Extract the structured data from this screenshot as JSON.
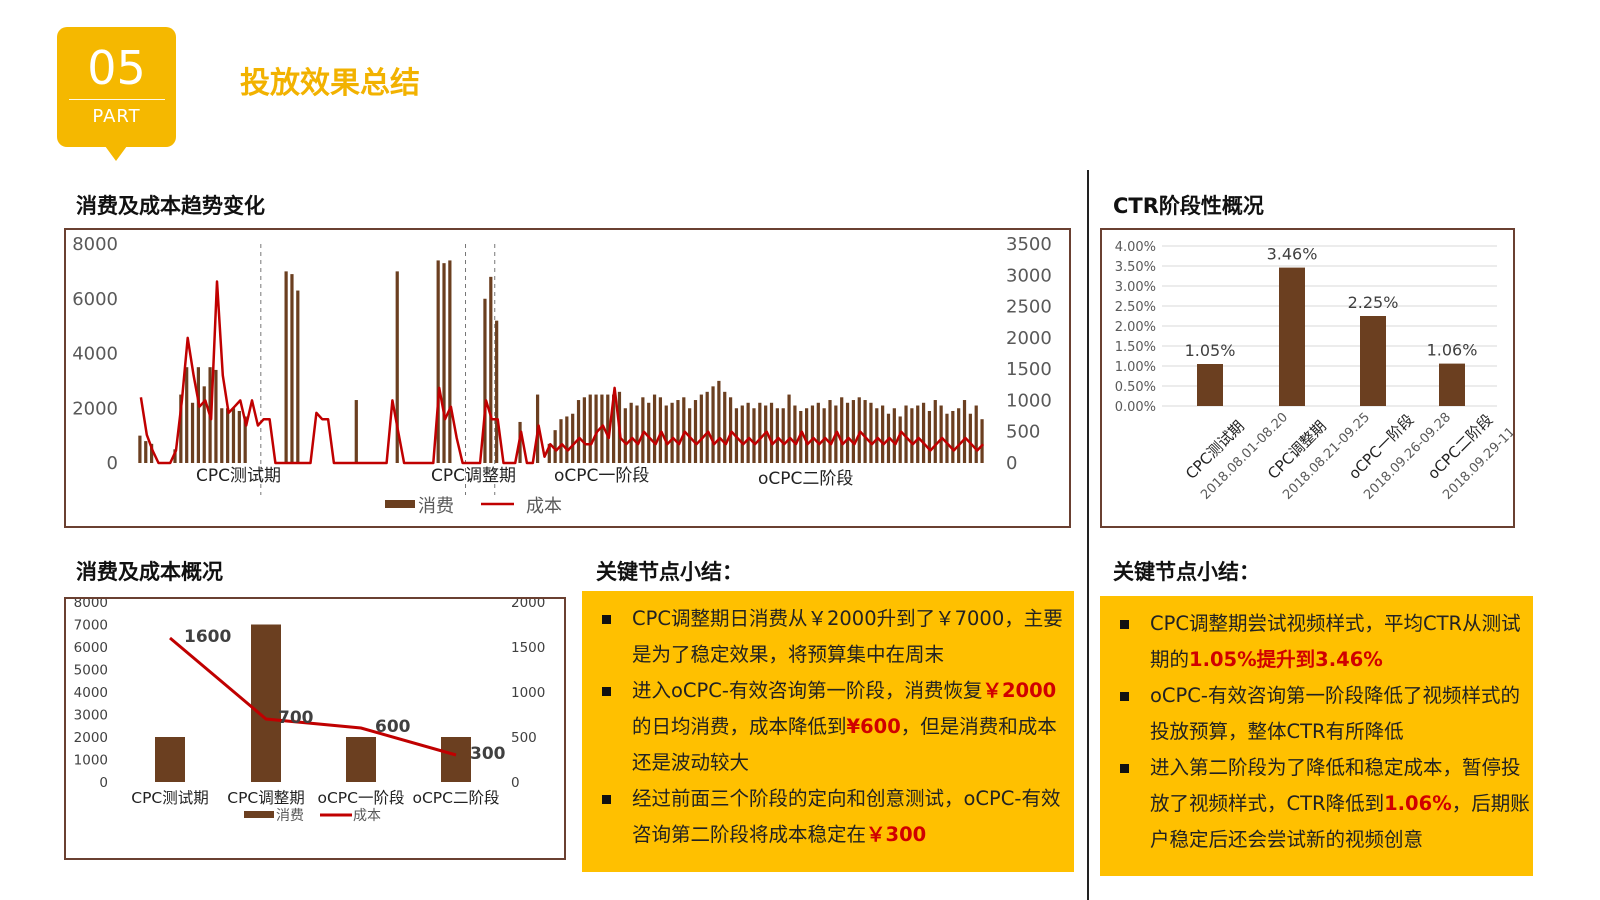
{
  "badge": {
    "number": "05",
    "label": "PART"
  },
  "page_title": "投放效果总结",
  "sections": {
    "trend_title": "消费及成本趋势变化",
    "ctr_title": "CTR阶段性概况",
    "overview_title": "消费及成本概况",
    "notes_left_title": "关键节点小结：",
    "notes_right_title": "关键节点小结："
  },
  "notes_left": [
    [
      {
        "t": "CPC调整期日消费从￥2000升到了￥7000，主要是为了稳定效果，将预算集中在周末"
      }
    ],
    [
      {
        "t": "进入oCPC-有效咨询第一阶段，消费恢复"
      },
      {
        "t": "￥2000",
        "hl": true
      },
      {
        "t": "的日均消费，成本降低到"
      },
      {
        "t": "¥600",
        "hl": true
      },
      {
        "t": "，但是消费和成本还是波动较大"
      }
    ],
    [
      {
        "t": "经过前面三个阶段的定向和创意测试，oCPC-有效咨询第二阶段将成本稳定在"
      },
      {
        "t": "￥300",
        "hl": true
      }
    ]
  ],
  "notes_right": [
    [
      {
        "t": "CPC调整期尝试视频样式，平均CTR从测试期的"
      },
      {
        "t": "1.05%提升到3.46%",
        "hl": true
      }
    ],
    [
      {
        "t": "oCPC-有效咨询第一阶段降低了视频样式的投放预算，整体CTR有所降低"
      }
    ],
    [
      {
        "t": "进入第二阶段为了降低和稳定成本，暂停投放了视频样式，CTR降低到"
      },
      {
        "t": "1.06%",
        "hl": true
      },
      {
        "t": "，后期账户稳定后还会尝试新的视频创意"
      }
    ]
  ],
  "colors": {
    "bar": "#6b3f20",
    "line": "#c00000",
    "accent": "#f5b800",
    "note_bg": "#ffc000"
  },
  "chart_data": [
    {
      "type": "bar+line",
      "id": "trend",
      "title": "消费及成本趋势变化",
      "y_left": {
        "min": 0,
        "max": 8000,
        "ticks": [
          0,
          2000,
          4000,
          6000,
          8000
        ]
      },
      "y_right": {
        "min": 0,
        "max": 3500,
        "ticks": [
          0,
          500,
          1000,
          1500,
          2000,
          2500,
          3000,
          3500
        ]
      },
      "phase_labels": [
        "CPC测试期",
        "CPC调整期",
        "oCPC一阶段",
        "oCPC二阶段"
      ],
      "phase_boundaries_day": [
        21,
        56,
        61
      ],
      "legend": [
        "消费",
        "成本"
      ],
      "series": [
        {
          "name": "消费",
          "axis": "left",
          "values": [
            1000,
            800,
            700,
            0,
            0,
            0,
            500,
            2500,
            3500,
            2200,
            3500,
            2800,
            3500,
            3400,
            2000,
            2000,
            2000,
            1900,
            1700,
            0,
            0,
            0,
            0,
            0,
            0,
            7000,
            6900,
            6300,
            0,
            0,
            0,
            0,
            0,
            0,
            0,
            0,
            0,
            2300,
            0,
            0,
            0,
            0,
            0,
            0,
            7000,
            0,
            0,
            0,
            0,
            0,
            0,
            7400,
            7300,
            7400,
            0,
            0,
            0,
            0,
            0,
            6000,
            6800,
            5200,
            0,
            0,
            0,
            1500,
            0,
            0,
            2500,
            0,
            700,
            1200,
            1600,
            1700,
            1800,
            2300,
            2400,
            2500,
            2500,
            2500,
            2500,
            2500,
            2600,
            2000,
            2200,
            2100,
            2400,
            2200,
            2500,
            2400,
            2100,
            2200,
            2300,
            2400,
            2000,
            2300,
            2500,
            2600,
            2800,
            3000,
            2600,
            2400,
            2000,
            2100,
            2200,
            2000,
            2200,
            2100,
            2200,
            2000,
            2000,
            2500,
            2100,
            1900,
            2000,
            2100,
            2200,
            2000,
            2300,
            2100,
            2400,
            2200,
            2300,
            2400,
            2300,
            2200,
            2000,
            2100,
            1800,
            2000,
            1700,
            2100,
            2000,
            2100,
            2200,
            1900,
            2300,
            2100,
            1800,
            1900,
            2000,
            2300,
            1800,
            2100,
            1600
          ]
        },
        {
          "name": "成本",
          "axis": "right",
          "values": [
            1050,
            450,
            200,
            0,
            0,
            0,
            200,
            1000,
            2000,
            1400,
            900,
            1000,
            700,
            2900,
            1400,
            800,
            900,
            1000,
            600,
            1000,
            600,
            700,
            700,
            0,
            0,
            0,
            0,
            0,
            0,
            0,
            800,
            700,
            700,
            0,
            0,
            0,
            0,
            0,
            0,
            0,
            0,
            0,
            0,
            1000,
            500,
            0,
            0,
            0,
            0,
            0,
            0,
            1200,
            700,
            900,
            400,
            0,
            0,
            0,
            0,
            1000,
            700,
            700,
            0,
            0,
            0,
            500,
            0,
            0,
            600,
            100,
            300,
            200,
            300,
            200,
            300,
            400,
            300,
            300,
            500,
            600,
            400,
            1200,
            400,
            300,
            400,
            300,
            500,
            400,
            300,
            500,
            300,
            400,
            300,
            500,
            400,
            300,
            400,
            500,
            300,
            400,
            300,
            500,
            400,
            300,
            400,
            300,
            400,
            500,
            300,
            400,
            300,
            400,
            300,
            500,
            300,
            400,
            300,
            400,
            300,
            500,
            300,
            400,
            300,
            500,
            400,
            300,
            400,
            300,
            400,
            300,
            500,
            400,
            300,
            400,
            300,
            200,
            300,
            400,
            300,
            200,
            300,
            400,
            300,
            200,
            300
          ]
        }
      ]
    },
    {
      "type": "bar",
      "id": "ctr",
      "title": "CTR阶段性概况",
      "categories": [
        "CPC测试期",
        "CPC调整期",
        "oCPC一阶段",
        "oCPC二阶段"
      ],
      "category_dates": [
        "2018.08.01-08.20",
        "2018.08.21-09.25",
        "2018.09.26-09.28",
        "2018.09.29-11.30"
      ],
      "values": [
        1.05,
        3.46,
        2.25,
        1.06
      ],
      "data_labels": [
        "1.05%",
        "3.46%",
        "2.25%",
        "1.06%"
      ],
      "ylim": [
        0,
        4
      ],
      "ticks": [
        "0.00%",
        "0.50%",
        "1.00%",
        "1.50%",
        "2.00%",
        "2.50%",
        "3.00%",
        "3.50%",
        "4.00%"
      ]
    },
    {
      "type": "bar+line",
      "id": "overview",
      "title": "消费及成本概况",
      "categories": [
        "CPC测试期",
        "CPC调整期",
        "oCPC一阶段",
        "oCPC二阶段"
      ],
      "y_left": {
        "min": 0,
        "max": 8000,
        "ticks": [
          0,
          1000,
          2000,
          3000,
          4000,
          5000,
          6000,
          7000,
          8000
        ]
      },
      "y_right": {
        "min": 0,
        "max": 2000,
        "ticks": [
          0,
          500,
          1000,
          1500,
          2000
        ]
      },
      "legend": [
        "消费",
        "成本"
      ],
      "series": [
        {
          "name": "消费",
          "axis": "left",
          "values": [
            2000,
            7000,
            2000,
            2000
          ]
        },
        {
          "name": "成本",
          "axis": "right",
          "values": [
            1600,
            700,
            600,
            300
          ],
          "labels": [
            "1600",
            "700",
            "600",
            "300"
          ]
        }
      ]
    }
  ]
}
